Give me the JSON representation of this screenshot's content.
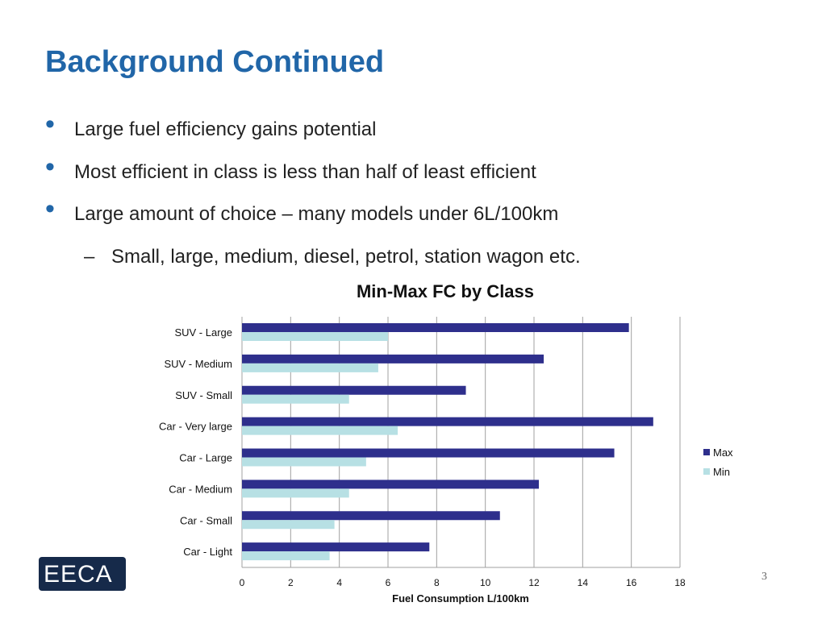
{
  "slide": {
    "title": "Background Continued",
    "bullets": [
      "Large fuel efficiency gains potential",
      "Most efficient in class is less than half of least efficient",
      "Large amount of choice – many models under 6L/100km"
    ],
    "sub_bullet": "Small, large, medium, diesel, petrol, station wagon etc.",
    "bullet_symbol": "•",
    "dash_symbol": "–",
    "page_number": "3",
    "logo_text": "EECA"
  },
  "colors": {
    "title": "#2166a8",
    "max": "#2e2f8c",
    "min": "#b7e0e4",
    "grid": "#a0a0a0"
  },
  "chart_data": {
    "type": "bar",
    "orientation": "horizontal",
    "title": "Min-Max FC by Class",
    "xlabel": "Fuel Consumption L/100km",
    "ylabel": "",
    "xlim": [
      0,
      18
    ],
    "xticks": [
      0,
      2,
      4,
      6,
      8,
      10,
      12,
      14,
      16,
      18
    ],
    "grid": true,
    "legend_position": "right",
    "categories": [
      "SUV - Large",
      "SUV - Medium",
      "SUV - Small",
      "Car - Very large",
      "Car - Large",
      "Car - Medium",
      "Car - Small",
      "Car - Light"
    ],
    "series": [
      {
        "name": "Max",
        "values": [
          15.9,
          12.4,
          9.2,
          16.9,
          15.3,
          12.2,
          10.6,
          7.7
        ]
      },
      {
        "name": "Min",
        "values": [
          6.0,
          5.6,
          4.4,
          6.4,
          5.1,
          4.4,
          3.8,
          3.6
        ]
      }
    ]
  }
}
